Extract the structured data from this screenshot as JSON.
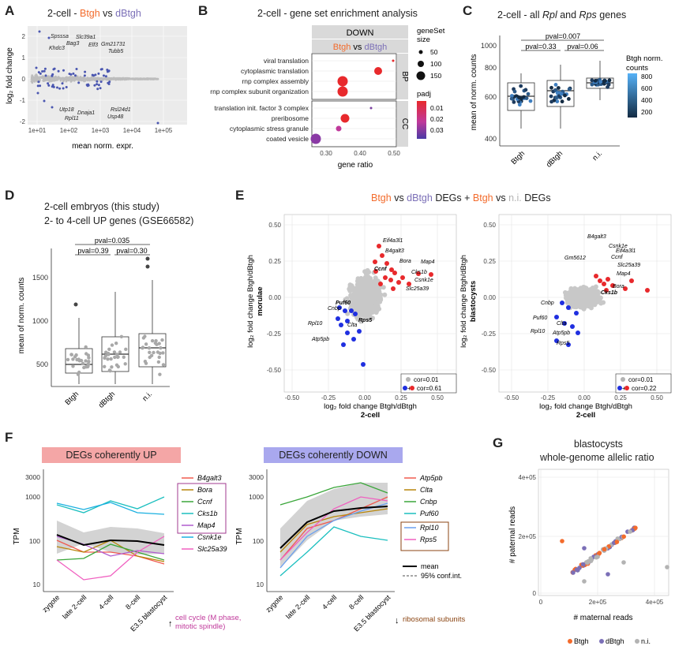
{
  "colors": {
    "btgh": "#f36b2c",
    "dbtgh": "#7b6fb7",
    "ni": "#b3b3b3",
    "red": "#e8292c",
    "blue": "#1f2fe0",
    "up_bg": "#f4a6a6",
    "down_bg": "#a9a8ee",
    "pink": "#c0399b",
    "brown": "#8b4513"
  },
  "panelA": {
    "label": "A",
    "title_pre": "2-cell - ",
    "title_a": "Btgh",
    "title_mid": " vs ",
    "title_b": "dBtgh",
    "ylabel": "log₂ fold change",
    "xlabel": "mean norm. expr.",
    "xticks": [
      "1e+01",
      "1e+02",
      "1e+03",
      "1e+04",
      "1e+05"
    ],
    "yticks": [
      "2",
      "1",
      "0",
      "-1",
      "-2"
    ],
    "genes": [
      "Spsssa",
      "Bag3",
      "Slc39a1",
      "Khdc3",
      "Elf3",
      "Gm21731",
      "Tubb5",
      "Utp18",
      "Dnaja1",
      "Rpl11",
      "Rsl24d1",
      "Usp48"
    ]
  },
  "panelB": {
    "label": "B",
    "title": "2-cell - gene set enrichment analysis",
    "strip_top": "DOWN",
    "strip_a": "Btgh",
    "strip_mid": " vs ",
    "strip_b": "dBtgh",
    "bp_label": "BP",
    "cc_label": "CC",
    "xlabel": "gene ratio",
    "xticks": [
      "0.30",
      "0.40",
      "0.50"
    ],
    "terms": [
      "viral translation",
      "cytoplasmic translation",
      "rnp complex assembly",
      "rnp complex subunit organization",
      "translation init. factor 3 complex",
      "preribosome",
      "cytoplasmic stress granule",
      "coated vesicle"
    ],
    "legend_size_title": "geneSet\nsize",
    "legend_sizes": [
      "50",
      "100",
      "150"
    ],
    "legend_padj_title": "padj",
    "legend_padj": [
      "0.01",
      "0.02",
      "0.03"
    ]
  },
  "panelC": {
    "label": "C",
    "title_pre": "2-cell - all ",
    "title_rpl": "Rpl",
    "title_and": " and ",
    "title_rps": "Rps",
    "title_post": " genes",
    "ylabel": "mean of norm. counts",
    "yticks": [
      "1000",
      "800",
      "600",
      "400"
    ],
    "xticks": [
      "Btgh",
      "dBtgh",
      "n.i."
    ],
    "pval_top": "pval=0.007",
    "pval_l": "pval=0.33",
    "pval_r": "pval=0.06",
    "legend_title": "Btgh norm.\ncounts",
    "legend_ticks": [
      "800",
      "600",
      "400",
      "200"
    ]
  },
  "panelD": {
    "label": "D",
    "title1": "2-cell embryos (this study)",
    "title2": "2- to 4-cell UP genes (GSE66582)",
    "ylabel": "mean of norm. counts",
    "yticks": [
      "1500",
      "1000",
      "500"
    ],
    "xticks": [
      "Btgh",
      "dBtgh",
      "n.i."
    ],
    "pval_top": "pval=0.035",
    "pval_l": "pval=0.39",
    "pval_r": "pval=0.30"
  },
  "panelE": {
    "label": "E",
    "title_a": "Btgh",
    "title_b": " vs ",
    "title_c": "dBtgh",
    "title_d": " DEGs + ",
    "title_e": "Btgh",
    "title_f": " vs ",
    "title_g": "n.i.",
    "title_h": " DEGs",
    "left_ylabel": "log₂ fold change Btgh/dBtgh",
    "left_ylabel2": "morulae",
    "right_ylabel": "log₂ fold change Btgh/dBtgh",
    "right_ylabel2": "blastocysts",
    "xlabel": "log₂ fold change Btgh/dBtgh",
    "xlabel2": "2-cell",
    "yticks": [
      "0.50",
      "0.25",
      "0.00",
      "-0.25",
      "-0.50"
    ],
    "xticks": [
      "-0.50",
      "-0.25",
      "0.00",
      "0.25",
      "0.50"
    ],
    "leg_cor1": "cor=0.01",
    "leg_cor2_left": "cor=0.61",
    "leg_cor2_right": "cor=0.22",
    "left_red": [
      "Eif4a3l1",
      "B4galt3",
      "Bora",
      "Map4",
      "Ccnf",
      "Cks1b",
      "Csnk1e",
      "Slc25a39"
    ],
    "left_blue": [
      "Puf60",
      "Cnbp",
      "Rps5",
      "Rpl10",
      "Clta",
      "Atp5pb"
    ],
    "right_red": [
      "B4galt3",
      "Csnk1e",
      "Gm5612",
      "Eif4a3l1",
      "Ccnf",
      "Slc25a39",
      "Map4",
      "Bora",
      "Cks1b"
    ],
    "right_blue": [
      "Cnbp",
      "Puf60",
      "Clta",
      "Rpl10",
      "Atp5pb",
      "Rps5"
    ]
  },
  "panelF": {
    "label": "F",
    "up_title": "DEGs coherently UP",
    "down_title": "DEGs coherently DOWN",
    "ylabel": "TPM",
    "yticks": [
      "3000",
      "1000",
      "100",
      "10"
    ],
    "xticks": [
      "zygote",
      "late 2-cell",
      "4-cell",
      "8-cell",
      "E3.5 blastocyst"
    ],
    "up_genes": [
      "B4galt3",
      "Bora",
      "Ccnf",
      "Cks1b",
      "Map4",
      "Csnk1e",
      "Slc25a39"
    ],
    "up_colors": [
      "#f05a4f",
      "#b8860b",
      "#3aa63a",
      "#1bbfbf",
      "#b05ccf",
      "#1ab0e0",
      "#f060c0"
    ],
    "down_genes": [
      "Atp5pb",
      "Clta",
      "Cnbp",
      "Puf60",
      "Rpl10",
      "Rps5"
    ],
    "down_colors": [
      "#f05a4f",
      "#b8860b",
      "#3aa63a",
      "#1bbfbf",
      "#6aa0f0",
      "#f060c0"
    ],
    "mean_label": "mean",
    "ci_label": "95% conf.int.",
    "up_note": "cell cycle (M phase,\nmitotic spindle)",
    "down_note": "ribosomal subunits"
  },
  "panelG": {
    "label": "G",
    "title1": "blastocysts",
    "title2": "whole-genome allelic ratio",
    "ylabel": "# paternal reads",
    "xlabel": "# maternal reads",
    "yticks": [
      "4e+05",
      "2e+05",
      "0"
    ],
    "xticks": [
      "0",
      "2e+05",
      "4e+05"
    ],
    "legend": [
      "Btgh",
      "dBtgh",
      "n.i."
    ]
  }
}
